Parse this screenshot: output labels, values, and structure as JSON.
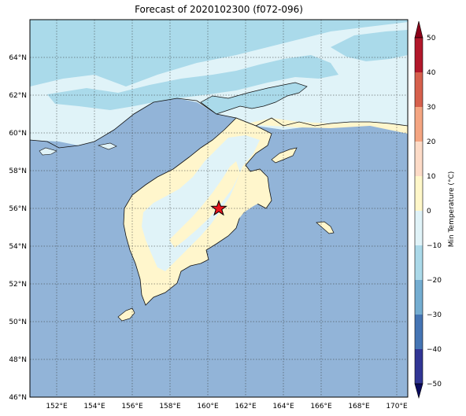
{
  "title": "Forecast of 2020102300 (f072-096)",
  "map": {
    "lat_labels": [
      "46°N",
      "48°N",
      "50°N",
      "52°N",
      "54°N",
      "56°N",
      "58°N",
      "60°N",
      "62°N",
      "64°N"
    ],
    "lon_labels": [
      "152°E",
      "154°E",
      "156°E",
      "158°E",
      "160°E",
      "162°E",
      "164°E",
      "166°E",
      "168°E",
      "170°E"
    ],
    "marker": {
      "lat": 56.0,
      "lon": 160.6,
      "symbol": "star",
      "fill": "#e8141c"
    }
  },
  "colorbar": {
    "label": "Min Temperature (°C)",
    "ticks": [
      "50",
      "40",
      "30",
      "20",
      "10",
      "0",
      "−10",
      "−20",
      "−30",
      "−40",
      "−50"
    ],
    "colors": [
      "#b2182b",
      "#d6604d",
      "#f4a582",
      "#fddbc7",
      "#fff7c9",
      "#e0f3f8",
      "#abd9e9",
      "#74add1",
      "#4575b4",
      "#313695"
    ],
    "top_extend": "#8b0019",
    "bottom_extend": "#0b0b5e"
  },
  "palette": {
    "ocean": "#92b4d8",
    "land_warm": "#fff6cc",
    "land_cool": "#e0f3f8",
    "land_cold": "#aadaea"
  }
}
